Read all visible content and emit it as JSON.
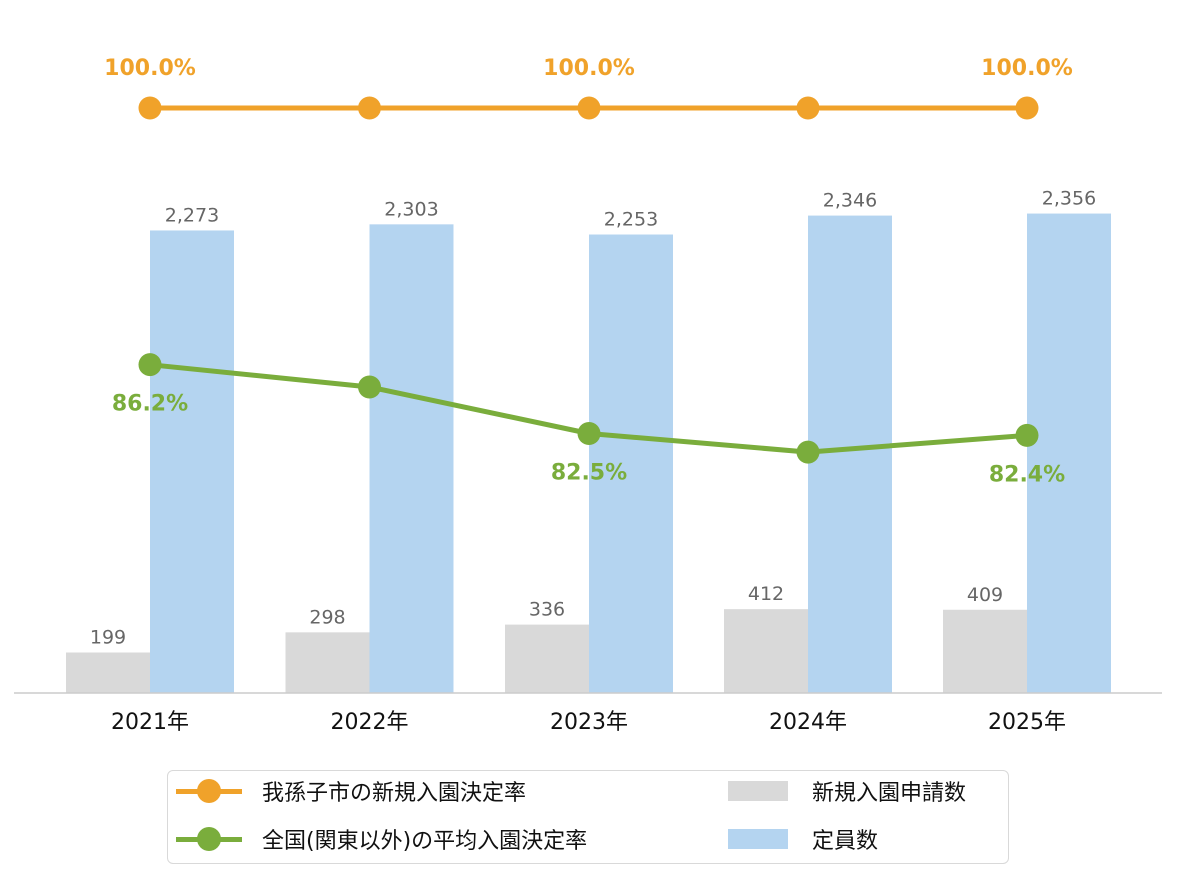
{
  "chart_data": {
    "type": "bar",
    "categories": [
      "2021年",
      "2022年",
      "2023年",
      "2024年",
      "2025年"
    ],
    "bar_series": [
      {
        "name": "新規入園申請数",
        "values": [
          199,
          298,
          336,
          412,
          409
        ],
        "labels": [
          "199",
          "298",
          "336",
          "412",
          "409"
        ],
        "color": "#d9d9d9"
      },
      {
        "name": "定員数",
        "values": [
          2273,
          2303,
          2253,
          2346,
          2356
        ],
        "labels": [
          "2,273",
          "2,303",
          "2,253",
          "2,346",
          "2,356"
        ],
        "color": "#b4d4f0"
      }
    ],
    "line_series": [
      {
        "name": "我孫子市の新規入園決定率",
        "values": [
          100.0,
          100.0,
          100.0,
          100.0,
          100.0
        ],
        "labels": [
          "100.0%",
          "",
          "100.0%",
          "",
          "100.0%"
        ],
        "color": "#f0a22a"
      },
      {
        "name": "全国(関東以外)の平均入園決定率",
        "values": [
          86.2,
          85.0,
          82.5,
          81.5,
          82.4
        ],
        "labels": [
          "86.2%",
          "",
          "82.5%",
          "",
          "82.4%"
        ],
        "color": "#7aad3c"
      }
    ],
    "bar_ylim": [
      0,
      2800
    ],
    "legend": {
      "placement": "bottom",
      "items": [
        {
          "label": "我孫子市の新規入園決定率",
          "kind": "line",
          "color": "#f0a22a"
        },
        {
          "label": "新規入園申請数",
          "kind": "bar",
          "color": "#d9d9d9"
        },
        {
          "label": "全国(関東以外)の平均入園決定率",
          "kind": "line",
          "color": "#7aad3c"
        },
        {
          "label": "定員数",
          "kind": "bar",
          "color": "#b4d4f0"
        }
      ]
    },
    "grid": false
  }
}
